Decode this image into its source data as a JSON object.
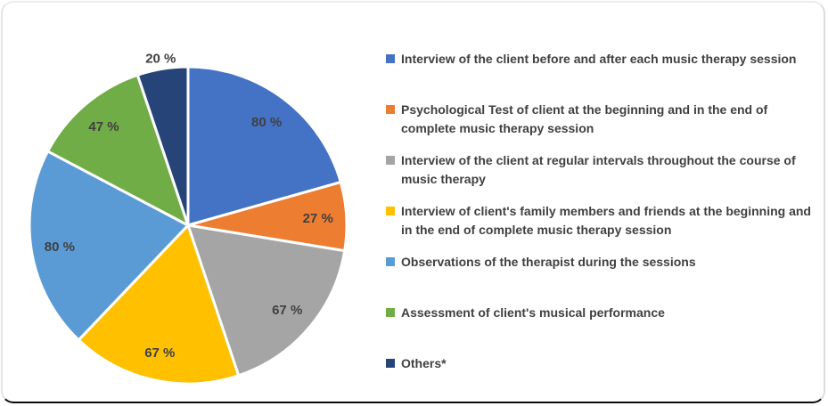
{
  "figure": {
    "background": "#ffffff",
    "border_bottom_color": "#0b0b0b"
  },
  "chart_data": {
    "type": "pie",
    "title": "",
    "legend_position": "right",
    "text_color": "#404040",
    "slice_separator_color": "#ffffff",
    "start_angle_deg": 0,
    "direction": "clockwise",
    "categories": [
      "Interview of the client before and after each music therapy session",
      "Psychological Test of client at the beginning and in the end of complete music therapy session",
      "Interview of the client at regular intervals throughout the course of music therapy",
      "Interview of client's family members and friends at the beginning and in the end of complete music therapy session",
      "Observations of the therapist during the sessions",
      "Assessment of client's musical performance",
      "Others*"
    ],
    "values": [
      80,
      27,
      67,
      67,
      80,
      47,
      20
    ],
    "labels": [
      "80 %",
      "27 %",
      "67 %",
      "67 %",
      "80 %",
      "47 %",
      "20 %"
    ],
    "colors": [
      "#4472C4",
      "#ED7D31",
      "#A5A5A5",
      "#FFC000",
      "#5B9BD5",
      "#70AD47",
      "#264478"
    ],
    "label_placement": [
      "inside",
      "inside",
      "inside",
      "inside",
      "inside",
      "inside",
      "outside"
    ]
  }
}
